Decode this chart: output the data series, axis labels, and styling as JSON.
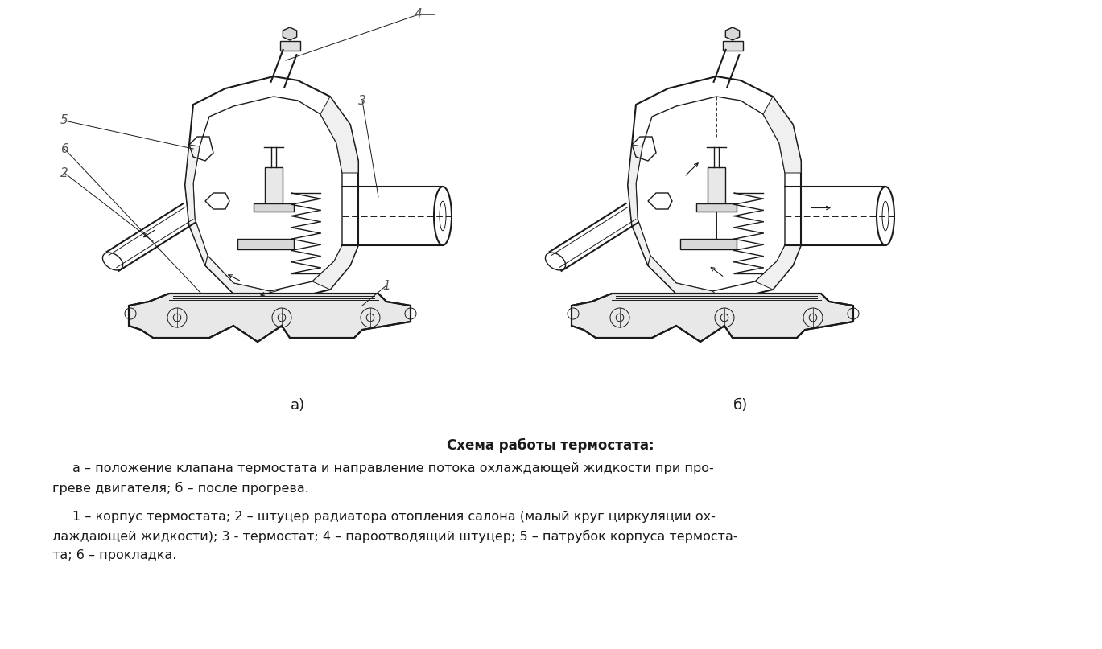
{
  "bg_color": "#ffffff",
  "fig_width": 13.69,
  "fig_height": 8.07,
  "dpi": 100,
  "label_a": "а)",
  "label_b": "б)",
  "title_line": "Схема работы термостата:",
  "desc_line1": "а – положение клапана термостата и направление потока охлаждающей жидкости при про-",
  "desc_line2": "греве двигателя; б – после прогрева.",
  "desc_line3": "1 – корпус термостата; 2 – штуцер радиатора отопления салона (малый круг циркуляции ох-",
  "desc_line4": "лаждающей жидкости); 3 - термостат; 4 – пароотводящий штуцер; 5 – патрубок корпуса термоста-",
  "desc_line5": "та; 6 – прокладка.",
  "line_color": "#1a1a1a",
  "text_color": "#1a1a1a",
  "num_color": "#555555",
  "font_size_caption": 12,
  "font_size_desc": 11.5,
  "font_size_label": 13,
  "font_size_num": 11
}
